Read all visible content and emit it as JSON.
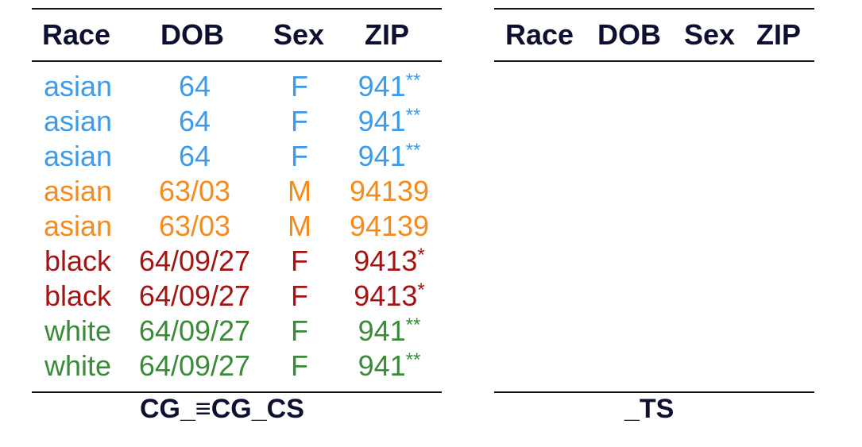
{
  "left_table": {
    "headers": [
      "Race",
      "DOB",
      "Sex",
      "ZIP"
    ],
    "rows": [
      {
        "race": "asian",
        "dob": "64",
        "sex": "F",
        "zip": "941",
        "zip_stars": "**",
        "color": "#3d9be9"
      },
      {
        "race": "asian",
        "dob": "64",
        "sex": "F",
        "zip": "941",
        "zip_stars": "**",
        "color": "#3d9be9"
      },
      {
        "race": "asian",
        "dob": "64",
        "sex": "F",
        "zip": "941",
        "zip_stars": "**",
        "color": "#3d9be9"
      },
      {
        "race": "asian",
        "dob": "63/03",
        "sex": "M",
        "zip": "94139",
        "zip_stars": "",
        "color": "#f58a1f"
      },
      {
        "race": "asian",
        "dob": "63/03",
        "sex": "M",
        "zip": "94139",
        "zip_stars": "",
        "color": "#f58a1f"
      },
      {
        "race": "black",
        "dob": "64/09/27",
        "sex": "F",
        "zip": "9413",
        "zip_stars": "*",
        "color": "#a31515"
      },
      {
        "race": "black",
        "dob": "64/09/27",
        "sex": "F",
        "zip": "9413",
        "zip_stars": "*",
        "color": "#a31515"
      },
      {
        "race": "white",
        "dob": "64/09/27",
        "sex": "F",
        "zip": "941",
        "zip_stars": "**",
        "color": "#3a8a3a"
      },
      {
        "race": "white",
        "dob": "64/09/27",
        "sex": "F",
        "zip": "941",
        "zip_stars": "**",
        "color": "#3a8a3a"
      }
    ],
    "caption": "CG_≡CG_CS"
  },
  "right_table": {
    "headers": [
      "Race",
      "DOB",
      "Sex",
      "ZIP"
    ],
    "rows": [],
    "caption": "_TS"
  }
}
